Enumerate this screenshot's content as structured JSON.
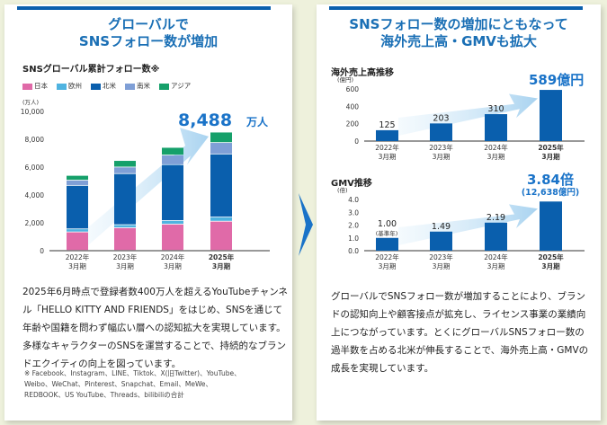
{
  "left": {
    "title_line1": "グローバルで",
    "title_line2": "SNSフォロー数が増加",
    "chart_title": "SNSグローバル累計フォロー数※",
    "unit": "(万人)",
    "highlight": "8,488",
    "highlight_unit": "万人",
    "paragraph": "2025年6月時点で登録者数400万人を超えるYouTubeチャンネル「HELLO KITTY AND FRIENDS」をはじめ、SNSを通じて年齢や国籍を問わず幅広い層への認知拡大を実現しています。多様なキャラクターのSNSを運営することで、持続的なブランドエクイティの向上を図っています。",
    "note": "※ Facebook、Instagram、LINE、Tiktok、X(旧Twitter)、YouTube、Weibo、WeChat、Pinterest、Snapchat、Email、MeWe、REDBOOK、US YouTube、Threads、bilibiliの合計"
  },
  "right": {
    "title_line1": "SNSフォロー数の増加にともなって",
    "title_line2": "海外売上高・GMVも拡大",
    "paragraph": "グローバルでSNSフォロー数が増加することにより、ブランドの認知向上や顧客接点が拡充し、ライセンス事業の業績向上につながっています。とくにグローバルSNSフォロー数の過半数を占める北米が伸長することで、海外売上高・GMVの成長を実現しています。"
  },
  "chart_data": [
    {
      "type": "bar",
      "stacked": true,
      "title": "SNSグローバル累計フォロー数※",
      "ylabel": "(万人)",
      "ylim": [
        0,
        10000
      ],
      "yticks": [
        "0",
        "2,000",
        "4,000",
        "6,000",
        "8,000",
        "10,000"
      ],
      "categories": [
        "2022年\n3月期",
        "2023年\n3月期",
        "2024年\n3月期",
        "2025年\n3月期"
      ],
      "series": [
        {
          "name": "日本",
          "color": "#e06aa8",
          "values": [
            1320,
            1620,
            1880,
            2090
          ]
        },
        {
          "name": "欧州",
          "color": "#4fb3e0",
          "values": [
            220,
            220,
            260,
            300
          ]
        },
        {
          "name": "北米",
          "color": "#0a5fad",
          "values": [
            3120,
            3670,
            4010,
            4530
          ]
        },
        {
          "name": "南米",
          "color": "#7f9fd6",
          "values": [
            380,
            470,
            690,
            820
          ]
        },
        {
          "name": "アジア",
          "color": "#16a06a",
          "values": [
            340,
            470,
            550,
            748
          ]
        }
      ],
      "legend": "top-left",
      "annotation": "8,488万人"
    },
    {
      "type": "bar",
      "title": "海外売上高推移",
      "ylabel": "(億円)",
      "ylim": [
        0,
        600
      ],
      "yticks": [
        "0",
        "200",
        "400",
        "600"
      ],
      "categories": [
        "2022年\n3月期",
        "2023年\n3月期",
        "2024年\n3月期",
        "2025年\n3月期"
      ],
      "values": [
        125,
        203,
        310,
        589
      ],
      "labels": [
        "125",
        "203",
        "310",
        ""
      ],
      "annotation": "589億円",
      "color": "#0a5fad"
    },
    {
      "type": "bar",
      "title": "GMV推移",
      "ylabel": "(倍)",
      "ylim": [
        0,
        4
      ],
      "yticks": [
        "0.0",
        "1.0",
        "2.0",
        "3.0",
        "4.0"
      ],
      "categories": [
        "2022年\n3月期",
        "2023年\n3月期",
        "2024年\n3月期",
        "2025年\n3月期"
      ],
      "values": [
        1.0,
        1.49,
        2.19,
        3.84
      ],
      "labels": [
        "1.00",
        "1.49",
        "2.19",
        ""
      ],
      "base_note": "(基準年)",
      "annotation": "3.84倍",
      "annotation2": "(12,638億円)",
      "color": "#0a5fad"
    }
  ]
}
